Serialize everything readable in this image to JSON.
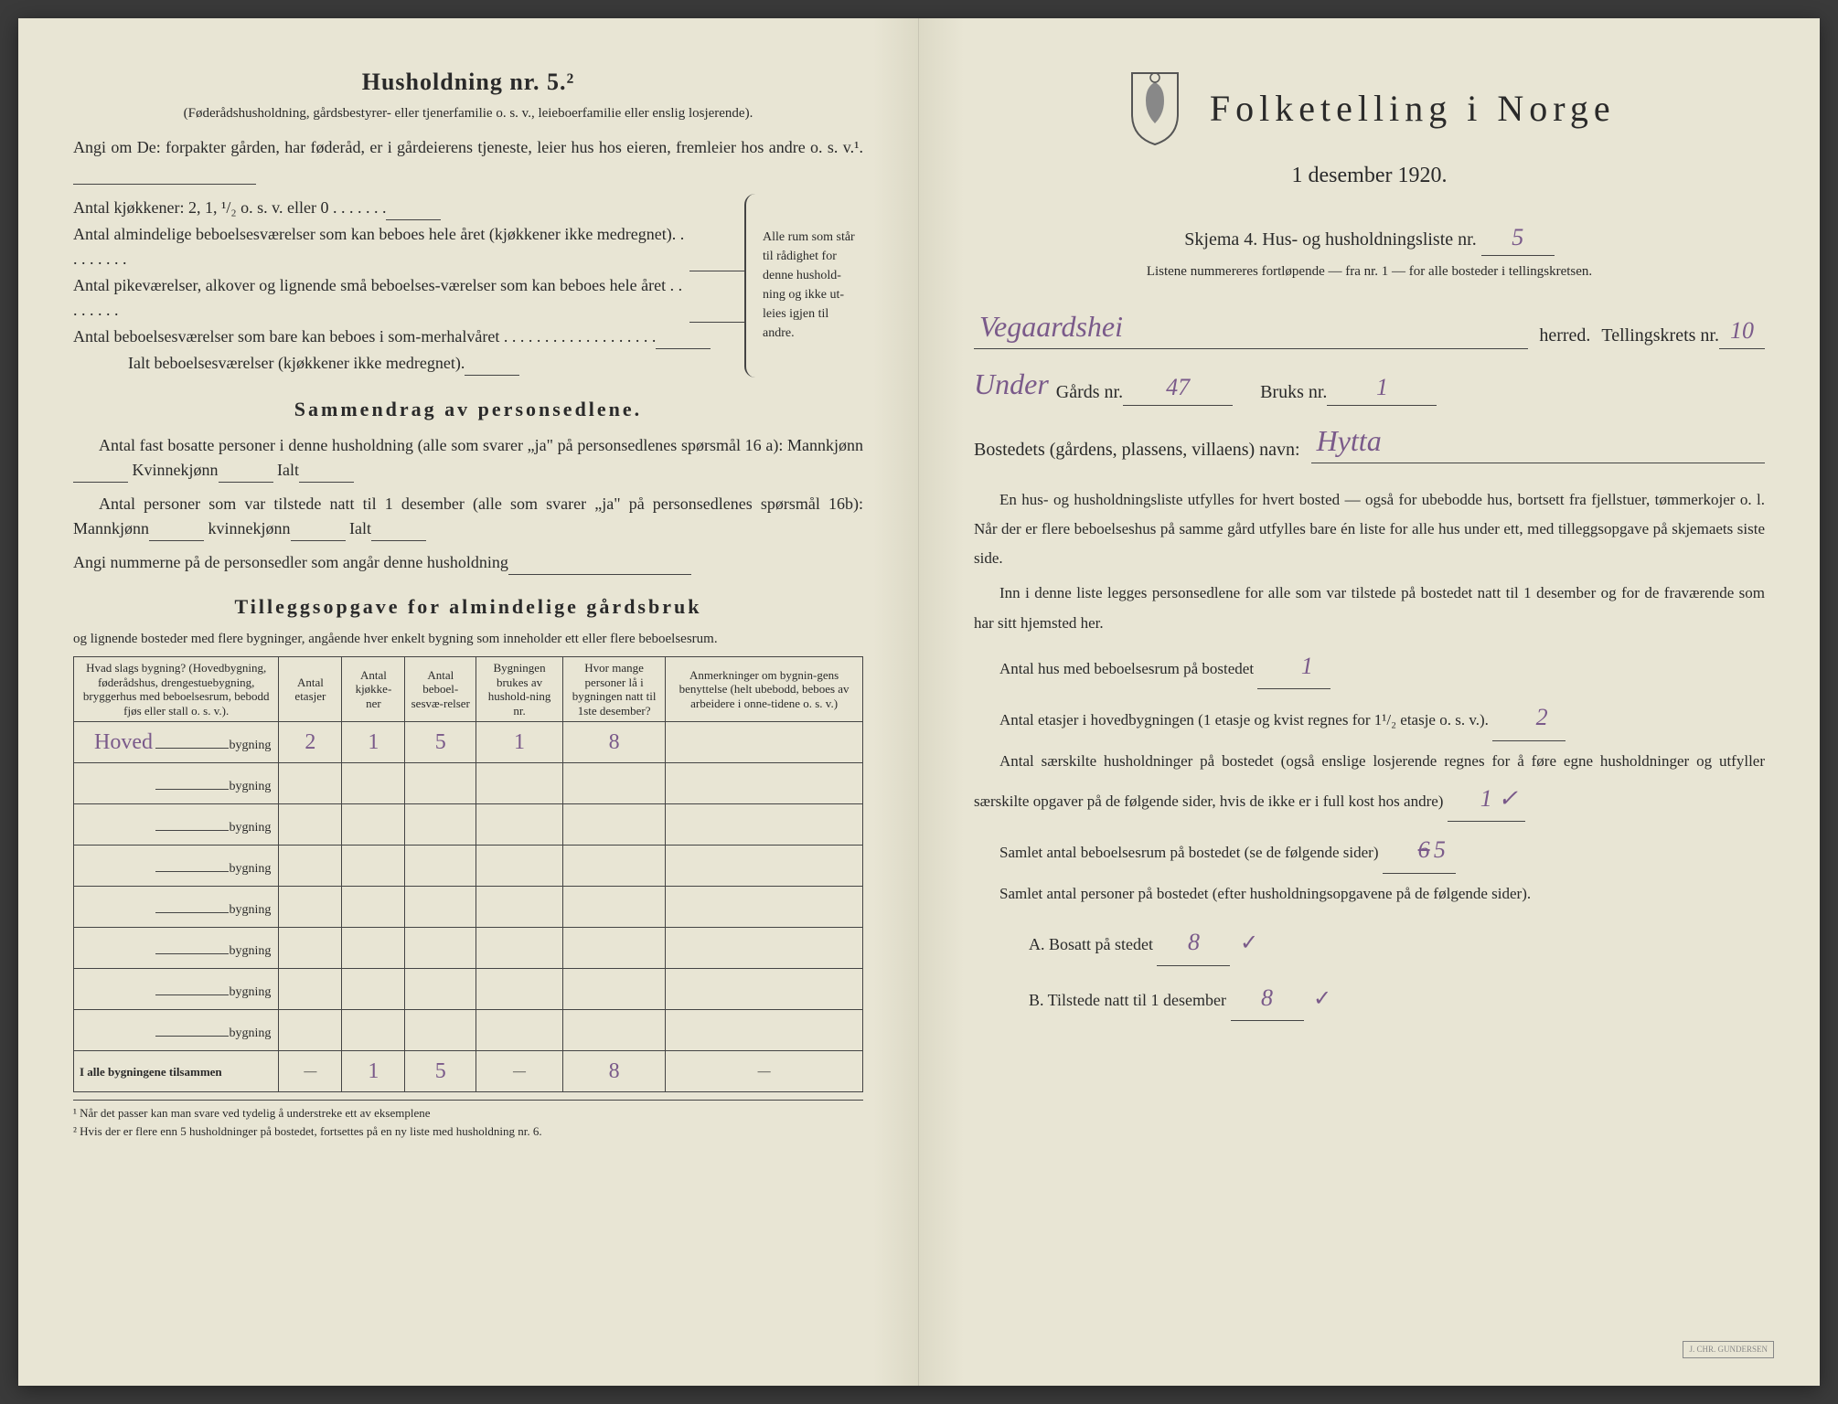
{
  "left": {
    "heading": "Husholdning nr. 5.²",
    "subtitle": "(Føderådshusholdning, gårdsbestyrer- eller tjenerfamilie o. s. v., leieboerfamilie eller enslig losjerende).",
    "angi_intro": "Angi om De:  forpakter gården, har føderåd, er i gårdeierens tjeneste, leier hus hos eieren, fremleier hos andre o. s. v.¹.",
    "kitchen_line": "Antal kjøkkener: 2, 1, ¹/₂ o. s. v. eller 0 .  .  .  .  .  .  .",
    "rooms_1": "Antal almindelige beboelsesværelser som kan beboes hele året (kjøkkener ikke medregnet). .  .  .  .  .  .  .  .",
    "rooms_2": "Antal pikeværelser, alkover og lignende små beboelses-værelser som kan beboes hele året .  .  .  .  .  .  .  .",
    "rooms_3": "Antal beboelsesværelser som bare kan beboes i som-merhalvåret .  .  .  .  .  .  .  .  .  .  .  .  .  .  .  .  .  .  .",
    "rooms_total": "Ialt beboelsesværelser (kjøkkener ikke medregnet).",
    "brace_text": "Alle rum som står til rådighet for denne hushold-ning og ikke ut-leies igjen til andre.",
    "sammen_heading": "Sammendrag av personsedlene.",
    "sammen_1a": "Antal fast bosatte personer i denne husholdning (alle som svarer „ja\" på personsedlenes spørsmål 16 a): Mannkjønn",
    "sammen_1b": "Kvinnekjønn",
    "sammen_1c": "Ialt",
    "sammen_2a": "Antal personer som var tilstede natt til 1 desember (alle som svarer „ja\" på personsedlenes spørsmål 16b): Mannkjønn",
    "sammen_2b": "kvinnekjønn",
    "sammen_2c": "Ialt",
    "sammen_3": "Angi nummerne på de personsedler som angår denne husholdning",
    "tillegg_heading": "Tilleggsopgave for almindelige gårdsbruk",
    "tillegg_sub": "og lignende bosteder med flere bygninger, angående hver enkelt bygning som inneholder ett eller flere beboelsesrum.",
    "table": {
      "headers": [
        "Hvad slags bygning?\n(Hovedbygning, føderådshus, drengestue­bygning, bryggerhus med beboelsesrum, bebodd fjøs eller stall o. s. v.).",
        "Antal etasjer",
        "Antal kjøkke-ner",
        "Antal beboel-sesvæ-relser",
        "Bygningen brukes av hushold-ning nr.",
        "Hvor mange personer lå i bygningen natt til 1ste desember?",
        "Anmerkninger om bygnin-gens benyttelse (helt ubebodd, beboes av arbeidere i onne-tidene o. s. v.)"
      ],
      "row_label": "bygning",
      "rows": [
        {
          "name": "Hoved",
          "etasjer": "2",
          "kjokken": "1",
          "beboelse": "5",
          "husnr": "1",
          "personer": "8",
          "anm": ""
        },
        {
          "name": "",
          "etasjer": "",
          "kjokken": "",
          "beboelse": "",
          "husnr": "",
          "personer": "",
          "anm": ""
        },
        {
          "name": "",
          "etasjer": "",
          "kjokken": "",
          "beboelse": "",
          "husnr": "",
          "personer": "",
          "anm": ""
        },
        {
          "name": "",
          "etasjer": "",
          "kjokken": "",
          "beboelse": "",
          "husnr": "",
          "personer": "",
          "anm": ""
        },
        {
          "name": "",
          "etasjer": "",
          "kjokken": "",
          "beboelse": "",
          "husnr": "",
          "personer": "",
          "anm": ""
        },
        {
          "name": "",
          "etasjer": "",
          "kjokken": "",
          "beboelse": "",
          "husnr": "",
          "personer": "",
          "anm": ""
        },
        {
          "name": "",
          "etasjer": "",
          "kjokken": "",
          "beboelse": "",
          "husnr": "",
          "personer": "",
          "anm": ""
        },
        {
          "name": "",
          "etasjer": "",
          "kjokken": "",
          "beboelse": "",
          "husnr": "",
          "personer": "",
          "anm": ""
        }
      ],
      "total_label": "I alle bygningene tilsammen",
      "totals": {
        "etasjer": "—",
        "kjokken": "1",
        "beboelse": "5",
        "husnr": "—",
        "personer": "8",
        "anm": "—"
      }
    },
    "footnote1": "¹  Når det passer kan man svare ved tydelig å understreke ett av eksemplene",
    "footnote2": "²  Hvis der er flere enn 5 husholdninger på bostedet, fortsettes på en ny liste med husholdning nr. 6."
  },
  "right": {
    "title": "Folketelling i Norge",
    "date": "1 desember 1920.",
    "skjema": "Skjema 4.   Hus- og husholdningsliste nr.",
    "liste_nr": "5",
    "sub_note": "Listene nummereres fortløpende — fra nr. 1 — for alle bosteder i tellingskretsen.",
    "herred_value": "Vegaardshei",
    "herred_label": "herred.",
    "krets_label": "Tellingskrets nr.",
    "krets_value": "10",
    "gard_prefix": "Under",
    "gard_label": "Gårds nr.",
    "gard_value": "47",
    "bruk_label": "Bruks nr.",
    "bruk_value": "1",
    "bosted_label": "Bostedets (gårdens, plassens, villaens) navn:",
    "bosted_value": "Hytta",
    "body_p1": "En hus- og husholdningsliste utfylles for hvert bosted — også for ubebodde hus, bortsett fra fjellstuer, tømmerkojer o. l.  Når der er flere beboelseshus på samme gård utfylles bare én liste for alle hus under ett, med tilleggsopgave på skjemaets siste side.",
    "body_p2": "Inn i denne liste legges personsedlene for alle som var tilstede på bostedet natt til 1 desember og for de fraværende som har sitt hjemsted her.",
    "q1_label": "Antal hus med beboelsesrum på bostedet",
    "q1_value": "1",
    "q2_label_a": "Antal etasjer i hovedbygningen (1 etasje og kvist regnes for 1¹/₂ etasje o. s. v.).",
    "q2_value": "2",
    "q3_label": "Antal særskilte husholdninger på bostedet (også enslige losjerende regnes for å føre egne husholdninger og utfyller særskilte opgaver på de følgende sider, hvis de ikke er i full kost hos andre)",
    "q3_value": "1 ✓",
    "q4_label": "Samlet antal beboelsesrum på bostedet (se de følgende sider)",
    "q4_strike": "6",
    "q4_value": "5",
    "q5_label": "Samlet antal personer på bostedet (efter husholdningsopgavene på de følgende sider).",
    "qA_label": "A.   Bosatt på stedet",
    "qA_value": "8",
    "qB_label": "B.   Tilstede natt til 1 desember",
    "qB_value": "8",
    "check": "✓"
  },
  "colors": {
    "paper": "#e8e5d4",
    "ink": "#2a2a2a",
    "handwriting": "#7a5a8a"
  }
}
